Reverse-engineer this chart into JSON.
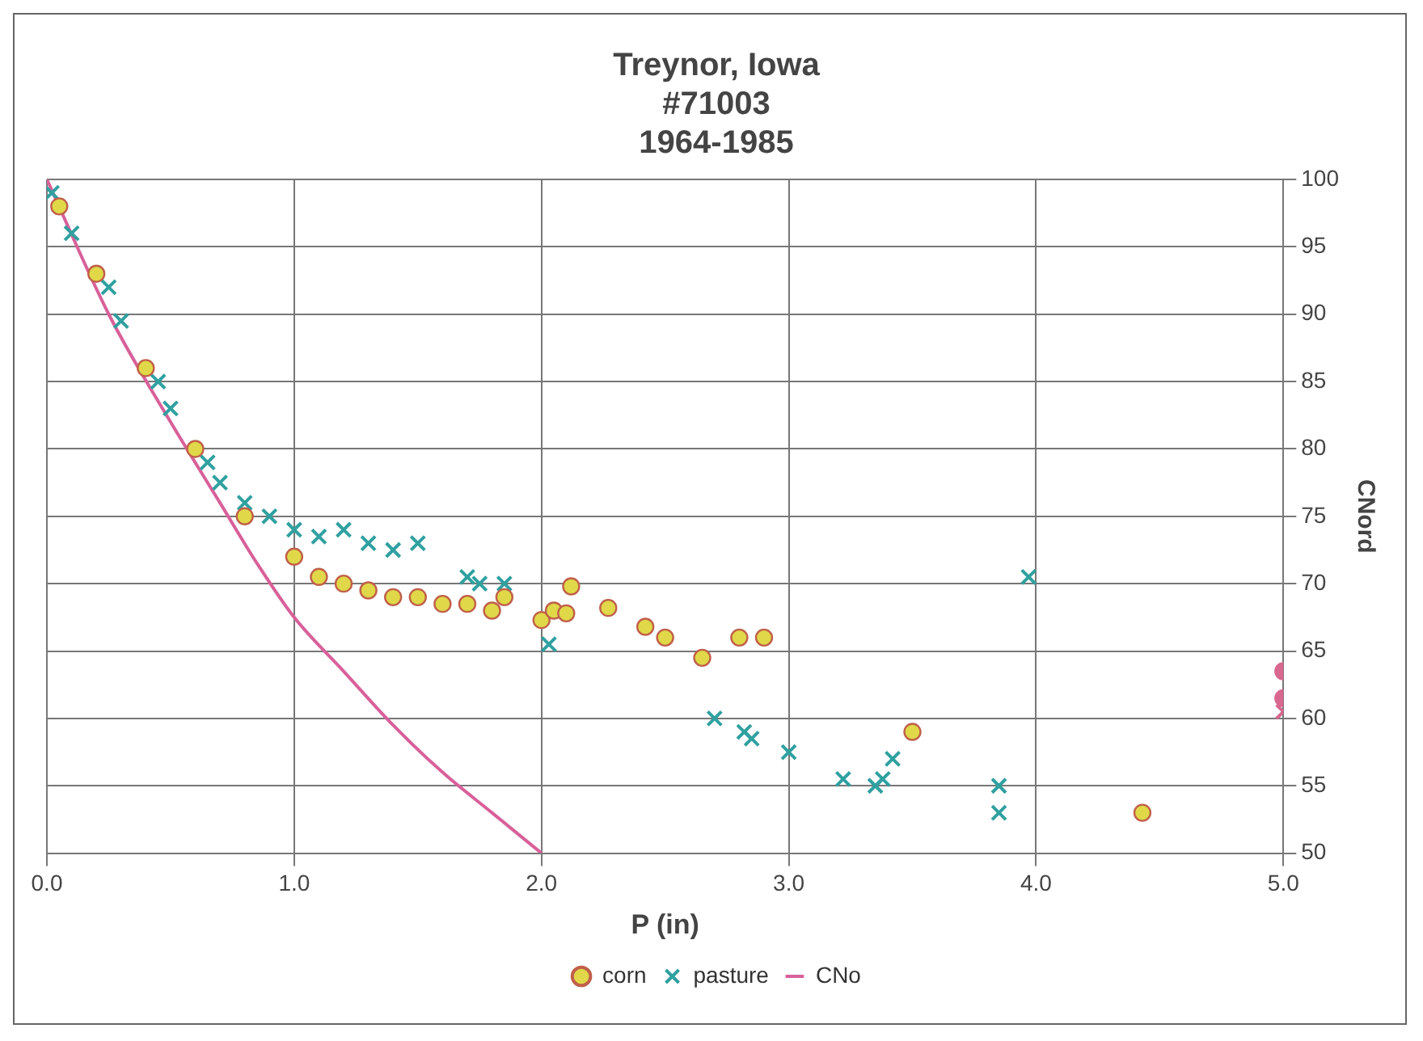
{
  "chart_data": {
    "type": "scatter",
    "title": "Treynor, Iowa\n#71003\n1964-1985",
    "xlabel": "P (in)",
    "ylabel": "CNord",
    "xlim": [
      0,
      5
    ],
    "xticks": [
      {
        "value": 0,
        "label": "0.0"
      },
      {
        "value": 1,
        "label": "1.0"
      },
      {
        "value": 2,
        "label": "2.0"
      },
      {
        "value": 3,
        "label": "3.0"
      },
      {
        "value": 4,
        "label": "4.0"
      },
      {
        "value": 5,
        "label": "5.0"
      }
    ],
    "ylim": [
      50,
      100
    ],
    "yticks": [
      50,
      55,
      60,
      65,
      70,
      75,
      80,
      85,
      90,
      95,
      100
    ],
    "grid": true,
    "legend": "bottom",
    "series": [
      {
        "name": "corn",
        "marker": "circle",
        "color": "#e0d848",
        "x": [
          0.05,
          0.2,
          0.4,
          0.6,
          0.8,
          1.0,
          1.1,
          1.2,
          1.3,
          1.4,
          1.5,
          1.6,
          1.7,
          1.8,
          1.85,
          2.0,
          2.05,
          2.1,
          2.12,
          2.27,
          2.42,
          2.5,
          2.65,
          2.8,
          2.9,
          3.5,
          4.43,
          5.0,
          5.0
        ],
        "values": [
          98,
          93,
          86,
          80,
          75,
          72,
          70.5,
          70,
          69.5,
          69,
          69,
          68.5,
          68.5,
          68,
          69,
          67.3,
          68,
          67.8,
          69.8,
          68.2,
          66.8,
          66,
          64.5,
          66,
          66,
          59,
          53,
          63.5,
          61.5
        ],
        "colors": [
          "#e0d848",
          "#e0d848",
          "#e0d848",
          "#e0d848",
          "#e0d848",
          "#e0d848",
          "#e0d848",
          "#e0d848",
          "#e0d848",
          "#e0d848",
          "#e0d848",
          "#e0d848",
          "#e0d848",
          "#e0d848",
          "#e0d848",
          "#e0d848",
          "#e0d848",
          "#e0d848",
          "#e0d848",
          "#e0d848",
          "#e0d848",
          "#e0d848",
          "#e0d848",
          "#e0d848",
          "#e0d848",
          "#e0d848",
          "#e0d848",
          "#d86890",
          "#d86890"
        ]
      },
      {
        "name": "pasture",
        "marker": "cross",
        "color": "#30a0a0",
        "x": [
          0.02,
          0.1,
          0.25,
          0.3,
          0.45,
          0.5,
          0.65,
          0.7,
          0.8,
          0.9,
          1.0,
          1.1,
          1.2,
          1.3,
          1.4,
          1.5,
          1.7,
          1.75,
          1.85,
          2.03,
          2.7,
          2.82,
          2.85,
          3.0,
          3.22,
          3.35,
          3.38,
          3.42,
          3.85,
          3.85,
          3.97,
          5.0
        ],
        "values": [
          99,
          96,
          92,
          89.5,
          85,
          83,
          79,
          77.5,
          76,
          75,
          74,
          73.5,
          74,
          73,
          72.5,
          73,
          70.5,
          70,
          70,
          65.5,
          60,
          59,
          58.5,
          57.5,
          55.5,
          55,
          55.5,
          57,
          55,
          53,
          70.5,
          60.5
        ],
        "colors": [
          "#30a0a0",
          "#30a0a0",
          "#30a0a0",
          "#30a0a0",
          "#30a0a0",
          "#30a0a0",
          "#30a0a0",
          "#30a0a0",
          "#30a0a0",
          "#30a0a0",
          "#30a0a0",
          "#30a0a0",
          "#30a0a0",
          "#30a0a0",
          "#30a0a0",
          "#30a0a0",
          "#30a0a0",
          "#30a0a0",
          "#30a0a0",
          "#30a0a0",
          "#30a0a0",
          "#30a0a0",
          "#30a0a0",
          "#30a0a0",
          "#30a0a0",
          "#30a0a0",
          "#30a0a0",
          "#30a0a0",
          "#30a0a0",
          "#30a0a0",
          "#30a0a0",
          "#d86890"
        ]
      },
      {
        "name": "CNo",
        "type": "line",
        "marker": "none",
        "line_style": "solid",
        "color": "#d8609a",
        "x": [
          0,
          0.25,
          0.5,
          0.7,
          0.85,
          1.0,
          1.2,
          1.4,
          1.6,
          1.8,
          2.0
        ],
        "values": [
          100,
          90,
          82,
          76,
          71.5,
          67.5,
          63.5,
          59.5,
          56,
          53,
          50
        ]
      }
    ]
  }
}
